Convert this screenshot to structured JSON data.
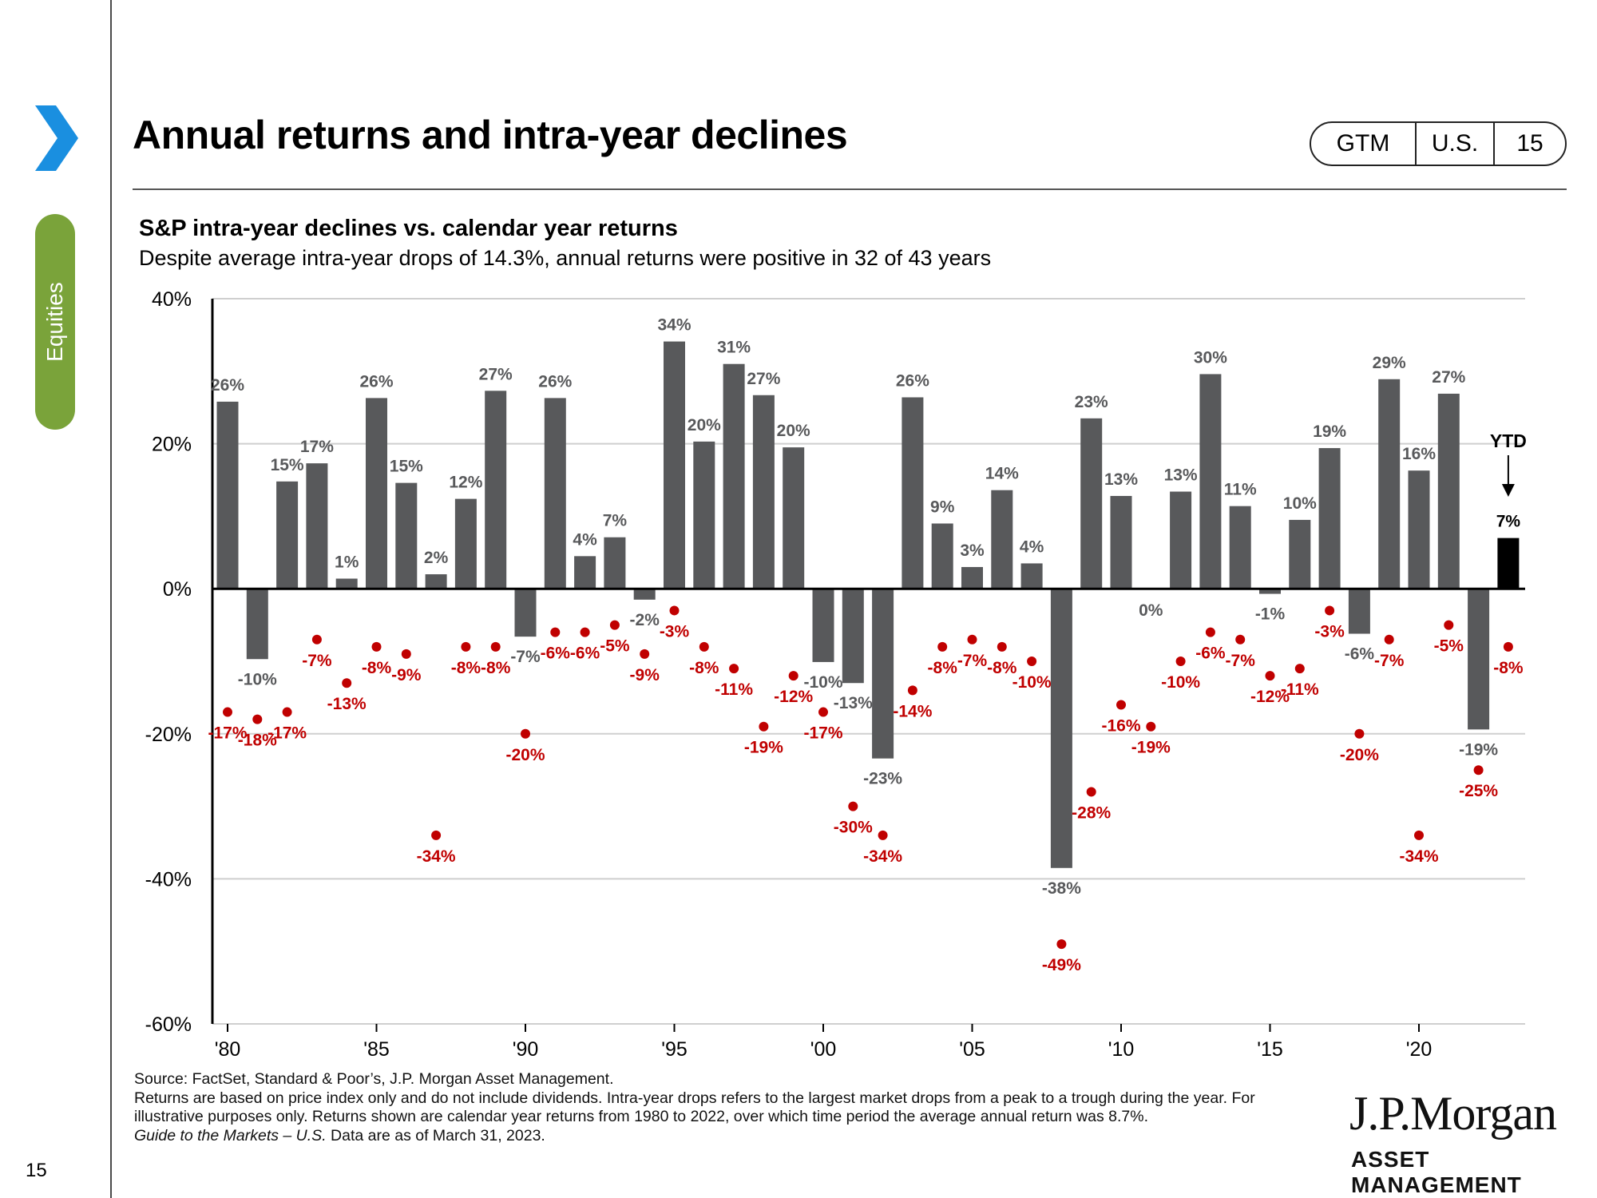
{
  "header": {
    "title": "Annual returns and intra-year declines",
    "tags": [
      "GTM",
      "U.S.",
      "15"
    ],
    "section": "Equities",
    "page_number": "15"
  },
  "chart_data": {
    "type": "bar",
    "title": "S&P intra-year declines vs. calendar year returns",
    "subtitle": "Despite average intra-year drops of 14.3%, annual returns were positive in 32 of 43 years",
    "years": [
      1980,
      1981,
      1982,
      1983,
      1984,
      1985,
      1986,
      1987,
      1988,
      1989,
      1990,
      1991,
      1992,
      1993,
      1994,
      1995,
      1996,
      1997,
      1998,
      1999,
      2000,
      2001,
      2002,
      2003,
      2004,
      2005,
      2006,
      2007,
      2008,
      2009,
      2010,
      2011,
      2012,
      2013,
      2014,
      2015,
      2016,
      2017,
      2018,
      2019,
      2020,
      2021,
      2022,
      2023
    ],
    "x_tick_labels": [
      "'80",
      "'85",
      "'90",
      "'95",
      "'00",
      "'05",
      "'10",
      "'15",
      "'20"
    ],
    "ylim": [
      -60,
      40
    ],
    "y_ticks": [
      40,
      20,
      0,
      -20,
      -40,
      -60
    ],
    "y_tick_labels": [
      "40%",
      "20%",
      "0%",
      "-20%",
      "-40%",
      "-60%"
    ],
    "grid": true,
    "series": [
      {
        "values": [
          25.8,
          -9.7,
          14.8,
          17.3,
          1.4,
          26.3,
          14.6,
          2.0,
          12.4,
          27.3,
          -6.6,
          26.3,
          4.5,
          7.1,
          -1.5,
          34.1,
          20.3,
          31.0,
          26.7,
          19.5,
          -10.1,
          -13.0,
          -23.4,
          26.4,
          9.0,
          3.0,
          13.6,
          3.5,
          -38.5,
          23.5,
          12.8,
          0.0,
          13.4,
          29.6,
          11.4,
          -0.7,
          9.5,
          19.4,
          -6.2,
          28.9,
          16.3,
          26.9,
          -19.4,
          7.0
        ],
        "labels": [
          "26%",
          "-10%",
          "15%",
          "17%",
          "1%",
          "26%",
          "15%",
          "2%",
          "12%",
          "27%",
          "-7%",
          "26%",
          "4%",
          "7%",
          "-2%",
          "34%",
          "20%",
          "31%",
          "27%",
          "20%",
          "-10%",
          "-13%",
          "-23%",
          "26%",
          "9%",
          "3%",
          "14%",
          "4%",
          "-38%",
          "23%",
          "13%",
          "0%",
          "13%",
          "30%",
          "11%",
          "-1%",
          "10%",
          "19%",
          "-6%",
          "29%",
          "16%",
          "27%",
          "-19%",
          "7%"
        ],
        "colors": {
          "bar": "#58595b",
          "ytd": "#000000",
          "label": "#58595b"
        }
      },
      {
        "values": [
          -17,
          -18,
          -17,
          -7,
          -13,
          -8,
          -9,
          -34,
          -8,
          -8,
          -20,
          -6,
          -6,
          -5,
          -9,
          -3,
          -8,
          -11,
          -19,
          -12,
          -17,
          -30,
          -34,
          -14,
          -8,
          -7,
          -8,
          -10,
          -49,
          -28,
          -16,
          -19,
          -10,
          -6,
          -7,
          -12,
          -11,
          -3,
          -20,
          -7,
          -34,
          -5,
          -25,
          -8
        ],
        "labels": [
          "-17%",
          "-18%",
          "-17%",
          "-7%",
          "-13%",
          "-8%",
          "-9%",
          "-34%",
          "-8%",
          "-8%",
          "-20%",
          "-6%",
          "-6%",
          "-5%",
          "-9%",
          "-3%",
          "-8%",
          "-11%",
          "-19%",
          "-12%",
          "-17%",
          "-30%",
          "-34%",
          "-14%",
          "-8%",
          "-7%",
          "-8%",
          "-10%",
          "-49%",
          "-28%",
          "-16%",
          "-19%",
          "-10%",
          "-6%",
          "-7%",
          "-12%",
          "-11%",
          "-3%",
          "-20%",
          "-7%",
          "-34%",
          "-5%",
          "-25%",
          "-8%"
        ],
        "colors": {
          "dot": "#c00000"
        }
      }
    ],
    "annotations": [
      {
        "text": "YTD",
        "year": 2023
      }
    ]
  },
  "footer": {
    "source": "Source: FactSet, Standard & Poor’s, J.P. Morgan Asset Management.",
    "notes": "Returns are based on price index only and do not include dividends. Intra-year drops refers to the largest market drops from a peak to a trough during the year. For illustrative purposes only. Returns shown are calendar year returns from 1980 to 2022, over which time period the average annual return was 8.7%.",
    "guide_italic": "Guide to the Markets – U.S.",
    "as_of": " Data are as of March 31, 2023."
  },
  "logo": {
    "main": "J.P.Morgan",
    "sub": "ASSET MANAGEMENT"
  },
  "colors": {
    "accent_blue": "#1a8fe0",
    "section_green": "#7aa33a"
  }
}
